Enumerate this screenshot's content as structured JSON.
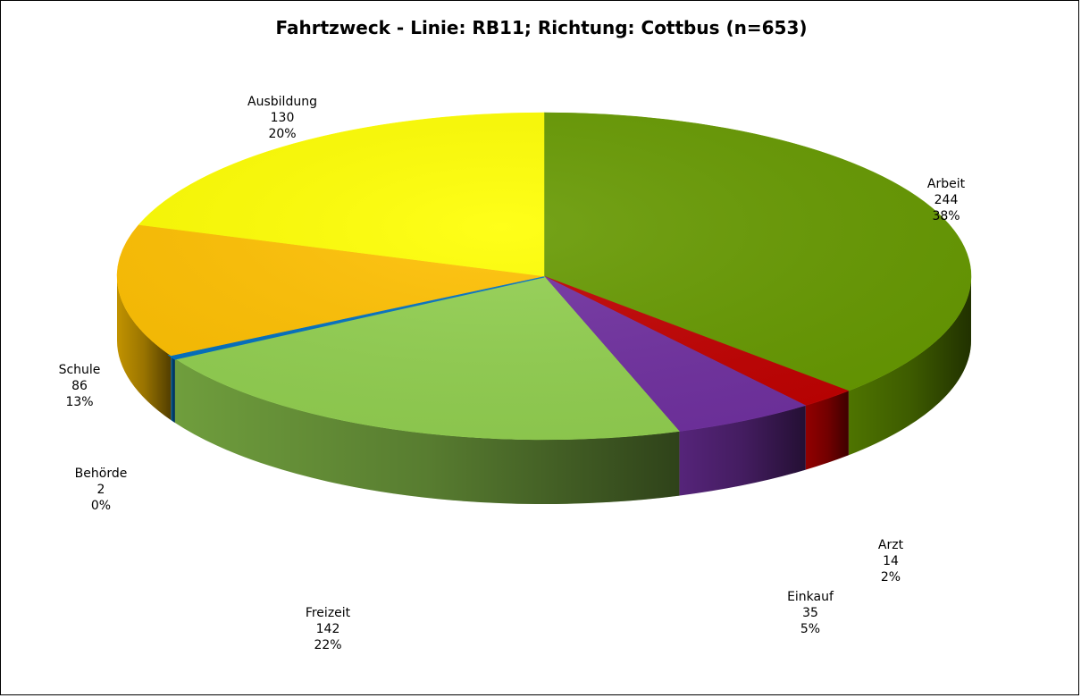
{
  "chart_data": {
    "type": "pie",
    "title": "Fahrtzweck - Linie: RB11; Richtung: Cottbus (n=653)",
    "slices": [
      {
        "name": "Arbeit",
        "value": 244,
        "percent": "38%",
        "color": "#669900"
      },
      {
        "name": "Arzt",
        "value": 14,
        "percent": "2%",
        "color": "#c00000"
      },
      {
        "name": "Einkauf",
        "value": 35,
        "percent": "5%",
        "color": "#7030a0"
      },
      {
        "name": "Freizeit",
        "value": 142,
        "percent": "22%",
        "color": "#92d050"
      },
      {
        "name": "Behörde",
        "value": 2,
        "percent": "0%",
        "color": "#0070c0"
      },
      {
        "name": "Schule",
        "value": 86,
        "percent": "13%",
        "color": "#ffc000"
      },
      {
        "name": "Ausbildung",
        "value": 130,
        "percent": "20%",
        "color": "#ffff00"
      }
    ]
  }
}
